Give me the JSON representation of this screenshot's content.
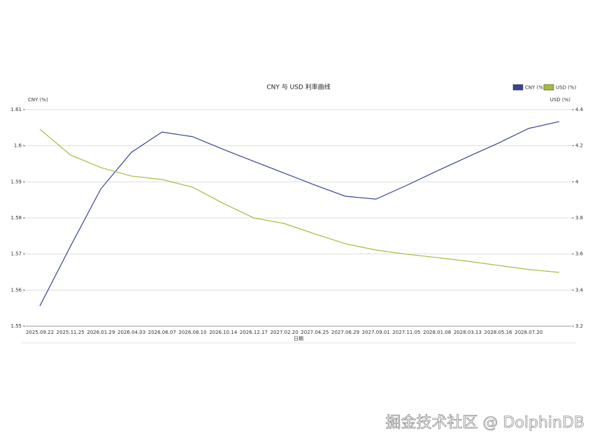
{
  "chart_data": {
    "type": "line",
    "title": "CNY 与 USD 利率曲线",
    "x_label": "日期",
    "y_label": "CNY (%)",
    "y2_label": "USD (%)",
    "categories": [
      "2025.09.22",
      "2025.11.25",
      "2026.01.29",
      "2026.04.03",
      "2026.06.07",
      "2026.08.10",
      "2026.10.14",
      "2026.12.17",
      "2027.02.20",
      "2027.04.25",
      "2027.06.29",
      "2027.09.01",
      "2027.11.05",
      "2028.01.08",
      "2028.03.13",
      "2028.05.16",
      "2028.07.20",
      null
    ],
    "series": [
      {
        "name": "CNY (%)",
        "color": "#3a4590",
        "values": [
          1.5556,
          1.5721,
          1.5881,
          1.5982,
          1.6038,
          1.6025,
          1.599,
          1.5957,
          1.5924,
          1.5891,
          1.586,
          1.5852,
          1.589,
          1.593,
          1.5969,
          1.6007,
          1.6048,
          1.6067
        ]
      },
      {
        "name": "USD (%)",
        "color": "#a3bd3c",
        "axis": "y2",
        "values": [
          4.292,
          4.149,
          4.079,
          4.032,
          4.013,
          3.97,
          3.881,
          3.8,
          3.769,
          3.711,
          3.657,
          3.622,
          3.599,
          3.58,
          3.56,
          3.537,
          3.514,
          3.498
        ]
      }
    ],
    "ylim": [
      1.55,
      1.61
    ],
    "yticks": [
      1.55,
      1.56,
      1.57,
      1.58,
      1.59,
      1.6,
      1.61
    ],
    "y2lim": [
      3.2,
      4.4
    ],
    "y2ticks": [
      3.2,
      3.4,
      3.6,
      3.8,
      4,
      4.2,
      4.4
    ],
    "grid": true,
    "legend": "top-right"
  },
  "watermark": "掘金技术社区 @ DolphinDB"
}
